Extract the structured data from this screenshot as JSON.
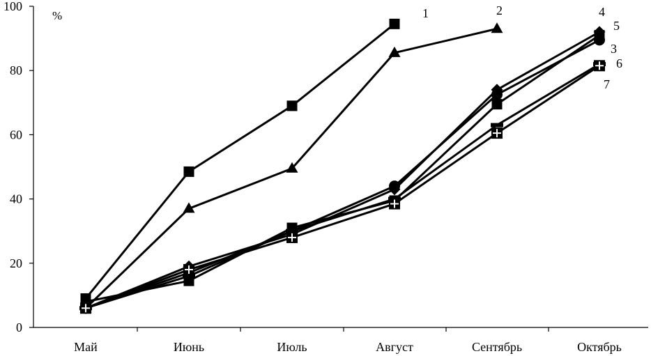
{
  "chart_data": {
    "type": "line",
    "title": "",
    "xlabel": "",
    "ylabel": "%",
    "ylim": [
      0,
      100
    ],
    "yticks": [
      0,
      20,
      40,
      60,
      80,
      100
    ],
    "categories": [
      "Май",
      "Июнь",
      "Июль",
      "Август",
      "Сентябрь",
      "Октябрь"
    ],
    "grid": false,
    "legend": "none",
    "line_color": "#000000",
    "series": [
      {
        "name": "1",
        "marker": "square",
        "values": [
          9,
          48.5,
          69,
          94.5,
          null,
          null
        ]
      },
      {
        "name": "2",
        "marker": "triangle",
        "values": [
          6,
          37,
          49.5,
          85.5,
          93,
          null
        ]
      },
      {
        "name": "3",
        "marker": "circle",
        "values": [
          6,
          17,
          30,
          44,
          72.5,
          89.5
        ]
      },
      {
        "name": "4",
        "marker": "diamond",
        "values": [
          6,
          19,
          29,
          43,
          74,
          92
        ]
      },
      {
        "name": "5",
        "marker": "square",
        "values": [
          8,
          14.5,
          31,
          39.5,
          69.5,
          91
        ]
      },
      {
        "name": "6",
        "marker": "dash",
        "values": [
          6,
          16,
          30,
          40,
          63,
          82
        ]
      },
      {
        "name": "7",
        "marker": "plus",
        "values": [
          6,
          18,
          28,
          38.5,
          60.5,
          81.5
        ]
      }
    ]
  }
}
